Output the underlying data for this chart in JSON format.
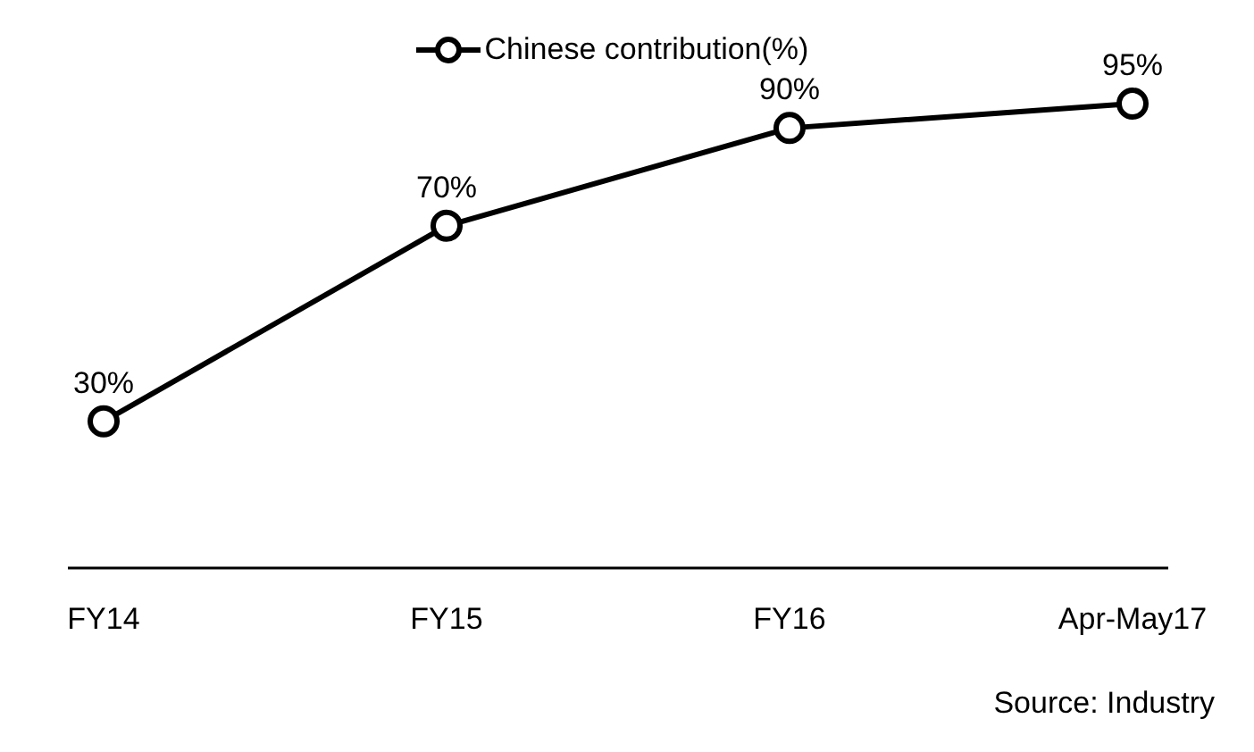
{
  "chart_data": {
    "type": "line",
    "categories": [
      "FY14",
      "FY15",
      "FY16",
      "Apr-May17"
    ],
    "series": [
      {
        "name": "Chinese contribution(%)",
        "color": "#000000",
        "values": [
          30,
          70,
          90,
          95
        ],
        "value_labels": [
          "30%",
          "70%",
          "90%",
          "95%"
        ]
      }
    ],
    "marker": "circle",
    "line_style": "solid",
    "legend": "top",
    "grid": false,
    "annotations": [
      "Source: Industry"
    ]
  }
}
